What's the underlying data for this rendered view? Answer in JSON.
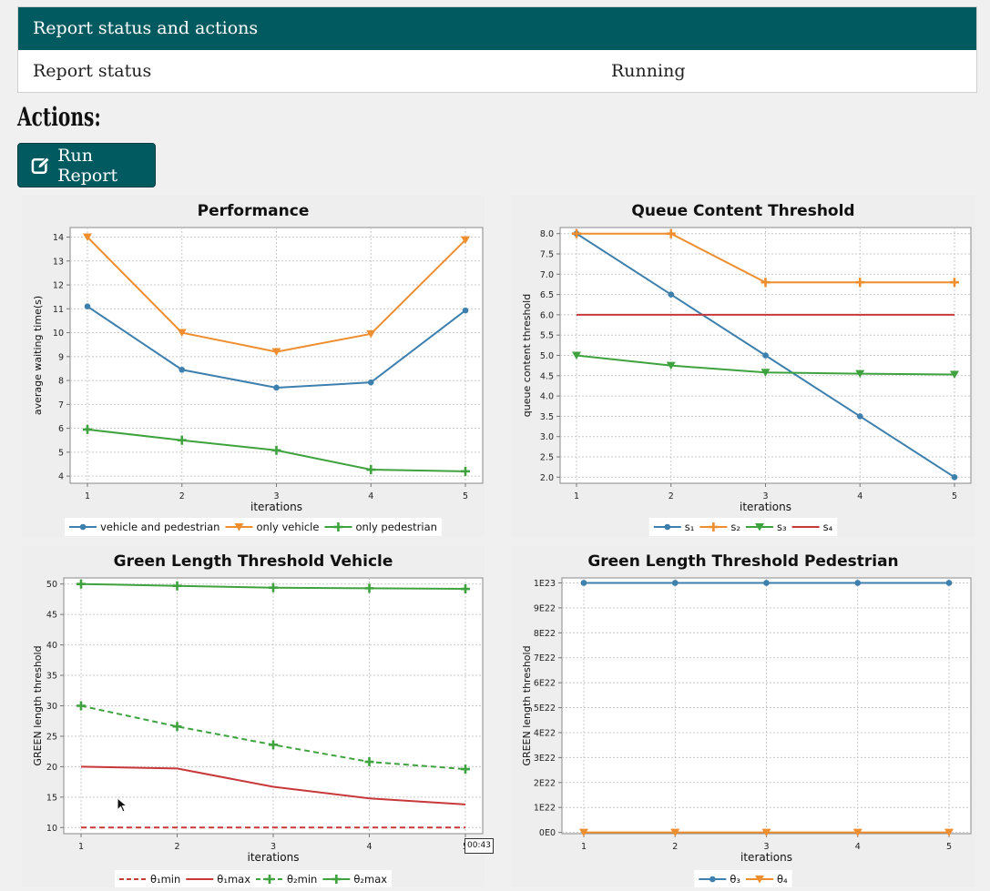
{
  "status_panel": {
    "header": "Report status and actions",
    "label": "Report status",
    "value": "Running"
  },
  "actions": {
    "title": "Actions:",
    "run_label": "Run Report",
    "run_icon": "edit-icon"
  },
  "timestamp": "00:43",
  "chart_data": [
    {
      "type": "line",
      "title": "Performance",
      "xlabel": "iterations",
      "ylabel": "average waiting time(s)",
      "x": [
        1,
        2,
        3,
        4,
        5
      ],
      "ylim": [
        3.7,
        14.4
      ],
      "yticks": [
        4,
        5,
        6,
        7,
        8,
        9,
        10,
        11,
        12,
        13,
        14
      ],
      "ytick_labels": [
        "4",
        "5",
        "6",
        "7",
        "8",
        "9",
        "10",
        "11",
        "12",
        "13",
        "14"
      ],
      "grid": true,
      "legend": "bottom",
      "series": [
        {
          "name": "vehicle and pedestrian",
          "values": [
            11.1,
            8.45,
            7.7,
            7.92,
            10.93
          ],
          "color": "#3d7fad",
          "marker": "circle",
          "dash": false
        },
        {
          "name": "only vehicle",
          "values": [
            14.0,
            10.0,
            9.2,
            9.95,
            13.88
          ],
          "color": "#ee8e2f",
          "marker": "triangle-down",
          "dash": false
        },
        {
          "name": "only pedestrian",
          "values": [
            5.95,
            5.5,
            5.08,
            4.27,
            4.2
          ],
          "color": "#3ea33e",
          "marker": "plus",
          "dash": false
        }
      ]
    },
    {
      "type": "line",
      "title": "Queue Content Threshold",
      "xlabel": "iterations",
      "ylabel": "queue content threshold",
      "x": [
        1,
        2,
        3,
        4,
        5
      ],
      "ylim": [
        1.85,
        8.15
      ],
      "yticks": [
        2.0,
        2.5,
        3.0,
        3.5,
        4.0,
        4.5,
        5.0,
        5.5,
        6.0,
        6.5,
        7.0,
        7.5,
        8.0
      ],
      "ytick_labels": [
        "2.0",
        "2.5",
        "3.0",
        "3.5",
        "4.0",
        "4.5",
        "5.0",
        "5.5",
        "6.0",
        "6.5",
        "7.0",
        "7.5",
        "8.0"
      ],
      "grid": true,
      "legend": "bottom",
      "series": [
        {
          "name": "s₁",
          "values": [
            8.0,
            6.5,
            5.0,
            3.5,
            2.0
          ],
          "color": "#3d7fad",
          "marker": "circle",
          "dash": false
        },
        {
          "name": "s₂",
          "values": [
            8.0,
            8.0,
            6.8,
            6.8,
            6.8
          ],
          "color": "#ee8e2f",
          "marker": "plus",
          "dash": false
        },
        {
          "name": "s₃",
          "values": [
            5.0,
            4.75,
            4.58,
            4.55,
            4.53
          ],
          "color": "#3ea33e",
          "marker": "triangle-down",
          "dash": false
        },
        {
          "name": "s₄",
          "values": [
            6.0,
            6.0,
            6.0,
            6.0,
            6.0
          ],
          "color": "#c8383a",
          "marker": "none",
          "dash": false
        }
      ]
    },
    {
      "type": "line",
      "title": "Green Length Threshold Vehicle",
      "xlabel": "iterations",
      "ylabel": "GREEN length threshold",
      "x": [
        1,
        2,
        3,
        4,
        5
      ],
      "ylim": [
        9.0,
        51.0
      ],
      "yticks": [
        10,
        15,
        20,
        25,
        30,
        35,
        40,
        45,
        50
      ],
      "ytick_labels": [
        "10",
        "15",
        "20",
        "25",
        "30",
        "35",
        "40",
        "45",
        "50"
      ],
      "grid": true,
      "legend": "bottom",
      "series": [
        {
          "name": "θ₁min",
          "values": [
            10,
            10,
            10,
            10,
            10
          ],
          "color": "#c8383a",
          "marker": "none",
          "dash": true
        },
        {
          "name": "θ₁max",
          "values": [
            20,
            19.7,
            16.7,
            14.8,
            13.8
          ],
          "color": "#c8383a",
          "marker": "none",
          "dash": false
        },
        {
          "name": "θ₂min",
          "values": [
            30,
            26.6,
            23.6,
            20.8,
            19.6
          ],
          "color": "#3ea33e",
          "marker": "plus",
          "dash": true
        },
        {
          "name": "θ₂max",
          "values": [
            50,
            49.7,
            49.4,
            49.3,
            49.2
          ],
          "color": "#3ea33e",
          "marker": "plus",
          "dash": false
        }
      ]
    },
    {
      "type": "line",
      "title": "Green Length Threshold Pedestrian",
      "xlabel": "iterations",
      "ylabel": "GREEN length threshold",
      "x": [
        1,
        2,
        3,
        4,
        5
      ],
      "ylim": [
        -0.05,
        10.2
      ],
      "yticks": [
        0,
        1,
        2,
        3,
        4,
        5,
        6,
        7,
        8,
        9,
        10
      ],
      "ytick_labels": [
        "0E0",
        "1E22",
        "2E22",
        "3E22",
        "4E22",
        "5E22",
        "6E22",
        "7E22",
        "8E22",
        "9E22",
        "1E23"
      ],
      "grid": true,
      "legend": "bottom",
      "series": [
        {
          "name": "θ₃",
          "values": [
            10,
            10,
            10,
            10,
            10
          ],
          "color": "#3d7fad",
          "marker": "circle",
          "dash": false
        },
        {
          "name": "θ₄",
          "values": [
            0,
            0,
            0,
            0,
            0
          ],
          "color": "#ee8e2f",
          "marker": "triangle-down",
          "dash": false
        }
      ]
    }
  ]
}
